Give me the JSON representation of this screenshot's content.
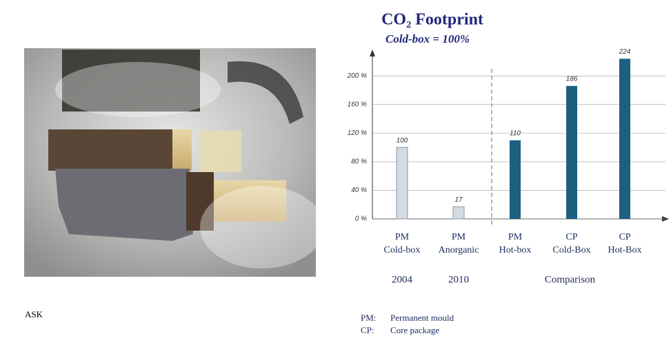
{
  "chart_data": {
    "type": "bar",
    "title": "CO₂ Footprint",
    "subtitle": "Cold-box = 100%",
    "categories": [
      [
        "PM",
        "Cold-box"
      ],
      [
        "PM",
        "Anorganic"
      ],
      [
        "PM",
        "Hot-box"
      ],
      [
        "CP",
        "Cold-Box"
      ],
      [
        "CP",
        "Hot-Box"
      ]
    ],
    "groups": [
      "2004",
      "2010",
      "Comparison"
    ],
    "values": [
      100,
      17,
      110,
      186,
      224
    ],
    "colors": [
      "#d3dbe3",
      "#d3dbe3",
      "#1d5f80",
      "#1d5f80",
      "#1d5f80"
    ],
    "ylim": [
      0,
      234
    ],
    "yticks": [
      {
        "value": 0,
        "label": "0 %"
      },
      {
        "value": 40,
        "label": "40 %"
      },
      {
        "value": 80,
        "label": "80 %"
      },
      {
        "value": 120,
        "label": "120 %"
      },
      {
        "value": 160,
        "label": "160 %"
      },
      {
        "value": 200,
        "label": "200 %"
      }
    ],
    "grid": true,
    "legend": [
      [
        "PM:",
        "Permanent mould"
      ],
      [
        "CP:",
        "Core package"
      ]
    ]
  },
  "footer": "ASK"
}
